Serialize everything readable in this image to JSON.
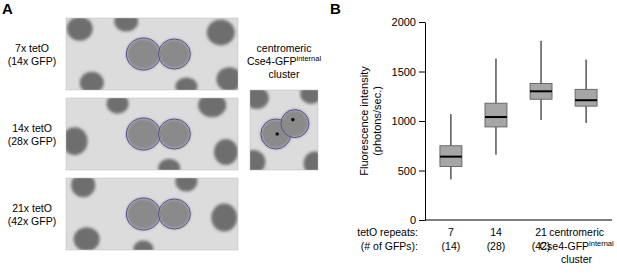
{
  "panel_labels": [
    "A",
    "B"
  ],
  "micrographs": {
    "tiles": [
      {
        "label_lines": [
          "7x tetO",
          "(14x GFP)"
        ]
      },
      {
        "label_lines": [
          "14x tetO",
          "(28x GFP)"
        ]
      },
      {
        "label_lines": [
          "21x tetO",
          "(42x GFP)"
        ]
      }
    ],
    "cluster_label_lines": [
      {
        "text": "centromeric"
      },
      {
        "text": "Cse4-GFP",
        "sup": "internal"
      },
      {
        "text": "cluster"
      }
    ]
  },
  "chart_data": {
    "type": "box",
    "y_label": [
      "Fluorescence intensity",
      "(photons/sec.)"
    ],
    "x_row_labels": [
      "tetO repeats:",
      "(# of GFPs):"
    ],
    "categories": [
      "7",
      "14",
      "21",
      "centromeric"
    ],
    "category_lines": [
      [
        {
          "text": "(14)"
        }
      ],
      [
        {
          "text": "(28)"
        }
      ],
      [
        {
          "text": "(42)"
        }
      ],
      [
        {
          "text": "Cse4-GFP",
          "sup": "internal"
        },
        {
          "text": "cluster"
        }
      ]
    ],
    "boxes": [
      {
        "whisker_low": 410,
        "q1": 540,
        "median": 640,
        "q3": 750,
        "whisker_high": 1070
      },
      {
        "whisker_low": 660,
        "q1": 940,
        "median": 1040,
        "q3": 1180,
        "whisker_high": 1630
      },
      {
        "whisker_low": 1010,
        "q1": 1220,
        "median": 1300,
        "q3": 1380,
        "whisker_high": 1810
      },
      {
        "whisker_low": 980,
        "q1": 1150,
        "median": 1210,
        "q3": 1320,
        "whisker_high": 1620
      }
    ],
    "color": "#a6a6a6",
    "ylim": [
      0,
      2000
    ],
    "yticks": [
      0,
      500,
      1000,
      1500,
      2000
    ],
    "grid": false
  }
}
